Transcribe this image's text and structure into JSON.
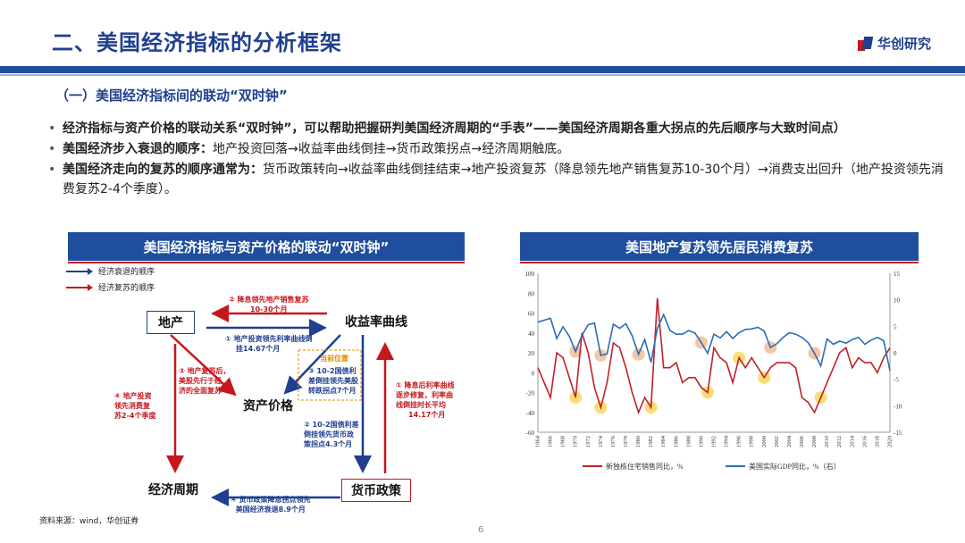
{
  "header": {
    "title": "二、美国经济指标的分析框架",
    "logo_text": "华创研究"
  },
  "section": {
    "subtitle": "（一）美国经济指标间的联动“双时钟”"
  },
  "bullets": [
    {
      "key": "",
      "text": "经济指标与资产价格的联动关系“双时钟”，可以帮助把握研判美国经济周期的“手表”——美国经济周期各重大拐点的先后顺序与大致时间点）"
    },
    {
      "key": "美国经济步入衰退的顺序：",
      "text": "地产投资回落→收益率曲线倒挂→货币政策拐点→经济周期触底。"
    },
    {
      "key": "美国经济走向的复苏的顺序通常为：",
      "text": "货币政策转向→收益率曲线倒挂结束→地产投资复苏（降息领先地产销售复苏10-30个月）→消费支出回升（地产投资领先消费复苏2-4个季度）。"
    }
  ],
  "left_panel": {
    "title": "美国经济指标与资产价格的联动“双时钟”",
    "legend": [
      {
        "label": "经济衰退的顺序",
        "color": "#1f3f8f"
      },
      {
        "label": "经济复苏的顺序",
        "color": "#c6171d"
      }
    ],
    "nodes": {
      "real_estate": "地产",
      "yield_curve": "收益率曲线",
      "asset_price": "资产价格",
      "economic_cycle": "经济周期",
      "monetary_policy": "货币政策"
    },
    "notes": {
      "top_red_1": "② 降息领先地产销售复苏",
      "top_red_2": "10-30个月",
      "top_blue_1": "① 地产投资领先利率曲线倒",
      "top_blue_2": "挂14.67个月",
      "left_red_1": "③ 地产复苏后，",
      "left_red_2": "美股先行于经",
      "left_red_3": "济的全面复苏",
      "far_left_1": "④ 地产投资",
      "far_left_2": "领先消费复",
      "far_left_3": "苏2-4个季度",
      "current_pos": "当前位置",
      "mid_blue_1": "③ 10-2国债利",
      "mid_blue_2": "差倒挂领先美股",
      "mid_blue_3": "转跌拐点7个月",
      "right_red_1": "① 降息后利率曲线",
      "right_red_2": "逐步修复，利率曲",
      "right_red_3": "线倒挂时长平均",
      "right_red_4": "14.17个月",
      "low_blue_1": "② 10-2国债利差",
      "low_blue_2": "倒挂领先货币政",
      "low_blue_3": "策拐点4.3个月",
      "bottom_blue_1": "④ 货币政策降息拐点领先",
      "bottom_blue_2": "美国经济衰退8.9个月"
    }
  },
  "right_panel": {
    "title": "美国地产复苏领先居民消费复苏"
  },
  "chart_data": {
    "type": "line",
    "title": "",
    "x_range": [
      1964,
      2020
    ],
    "x_ticks": [
      "1964",
      "1966",
      "1968",
      "1970",
      "1972",
      "1974",
      "1976",
      "1978",
      "1980",
      "1982",
      "1984",
      "1986",
      "1988",
      "1990",
      "1992",
      "1994",
      "1996",
      "1998",
      "2000",
      "2002",
      "2004",
      "2006",
      "2008",
      "2010",
      "2012",
      "2014",
      "2016",
      "2018",
      "2020"
    ],
    "y_left": {
      "ticks": [
        100,
        80,
        60,
        40,
        20,
        0,
        -20,
        -40,
        -60
      ],
      "range": [
        -60,
        100
      ]
    },
    "y_right": {
      "ticks": [
        15,
        10,
        5,
        0,
        -5,
        -10,
        -15
      ],
      "range": [
        -15,
        15
      ]
    },
    "series": [
      {
        "name": "新独栋住宅销售同比，%",
        "axis": "left",
        "color": "#c0202a",
        "x": [
          1964,
          1966,
          1967,
          1968,
          1969,
          1970,
          1971,
          1972,
          1973,
          1974,
          1975,
          1976,
          1977,
          1978,
          1979,
          1980,
          1981,
          1982,
          1983,
          1984,
          1985,
          1986,
          1987,
          1988,
          1989,
          1990,
          1991,
          1992,
          1993,
          1994,
          1995,
          1996,
          1997,
          1998,
          1999,
          2000,
          2001,
          2002,
          2003,
          2004,
          2005,
          2006,
          2007,
          2008,
          2009,
          2010,
          2011,
          2012,
          2013,
          2014,
          2015,
          2016,
          2017,
          2018,
          2019,
          2020
        ],
        "values": [
          5,
          -25,
          20,
          15,
          -5,
          -25,
          40,
          20,
          -15,
          -35,
          -10,
          30,
          25,
          5,
          -20,
          -40,
          -25,
          -35,
          75,
          5,
          5,
          10,
          -10,
          -5,
          -5,
          -15,
          -20,
          25,
          15,
          10,
          -10,
          15,
          5,
          15,
          5,
          -5,
          5,
          10,
          10,
          10,
          5,
          -25,
          -30,
          -40,
          -25,
          -10,
          5,
          20,
          25,
          5,
          15,
          10,
          10,
          0,
          15,
          25
        ]
      },
      {
        "name": "美国实际GDP同比，%（右）",
        "axis": "right",
        "color": "#2a6db5",
        "x": [
          1964,
          1966,
          1967,
          1968,
          1969,
          1970,
          1971,
          1972,
          1973,
          1974,
          1975,
          1976,
          1977,
          1978,
          1979,
          1980,
          1981,
          1982,
          1983,
          1984,
          1985,
          1986,
          1987,
          1988,
          1989,
          1990,
          1991,
          1992,
          1993,
          1994,
          1995,
          1996,
          1997,
          1998,
          1999,
          2000,
          2001,
          2002,
          2003,
          2004,
          2005,
          2006,
          2007,
          2008,
          2009,
          2010,
          2011,
          2012,
          2013,
          2014,
          2015,
          2016,
          2017,
          2018,
          2019,
          2020
        ],
        "values": [
          5.8,
          6.5,
          2.7,
          4.9,
          3.1,
          0.2,
          3.3,
          5.3,
          5.6,
          -0.5,
          -0.2,
          5.4,
          4.6,
          5.5,
          3.2,
          -0.3,
          2.5,
          -1.8,
          4.6,
          7.2,
          4.2,
          3.5,
          3.5,
          4.2,
          3.7,
          1.9,
          -0.1,
          3.5,
          2.8,
          4.0,
          2.7,
          3.8,
          4.4,
          4.5,
          4.8,
          4.1,
          1.0,
          1.7,
          2.9,
          3.8,
          3.5,
          2.9,
          1.9,
          -0.1,
          -2.5,
          2.6,
          1.6,
          2.2,
          1.8,
          2.5,
          2.9,
          1.6,
          2.4,
          2.9,
          2.3,
          -3.4
        ]
      }
    ],
    "highlights": {
      "orange": [
        1970,
        1974,
        1980,
        1990,
        2001,
        2008
      ],
      "yellow": [
        1970,
        1974,
        1982,
        1991,
        1996,
        2000,
        2009
      ]
    },
    "legend_position": "bottom",
    "grid": false
  },
  "footer": {
    "source": "资料来源：wind，华创证券",
    "page": "6"
  }
}
